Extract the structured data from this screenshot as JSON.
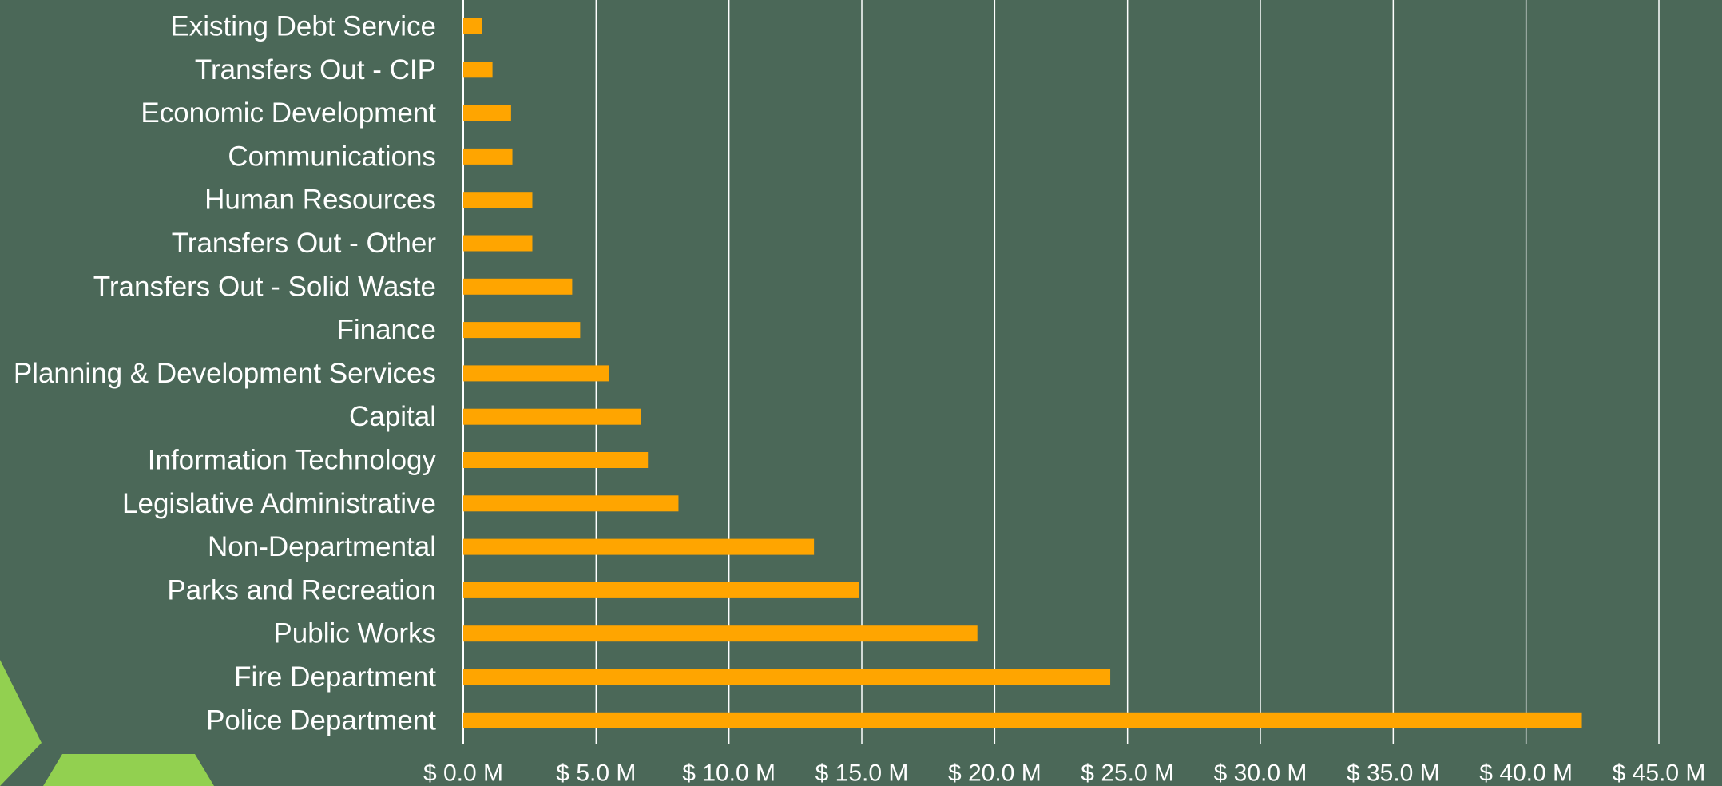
{
  "chart_data": {
    "type": "bar",
    "orientation": "horizontal",
    "categories": [
      "Existing Debt Service",
      "Transfers Out - CIP",
      "Economic Development",
      "Communications",
      "Human Resources",
      "Transfers Out - Other",
      "Transfers Out - Solid Waste",
      "Finance",
      "Planning & Development Services",
      "Capital",
      "Information Technology",
      "Legislative Administrative",
      "Non-Departmental",
      "Parks and Recreation",
      "Public Works",
      "Fire Department",
      "Police Department"
    ],
    "values": [
      0.7,
      1.1,
      1.8,
      1.85,
      2.6,
      2.6,
      4.1,
      4.4,
      5.5,
      6.7,
      6.95,
      8.1,
      13.2,
      14.9,
      19.35,
      24.35,
      42.1
    ],
    "unit": "$ M",
    "xlim": [
      0,
      45
    ],
    "xticks": [
      0,
      5,
      10,
      15,
      20,
      25,
      30,
      35,
      40,
      45
    ],
    "xtick_labels": [
      "$ 0.0 M",
      "$ 5.0 M",
      "$ 10.0 M",
      "$ 15.0 M",
      "$ 20.0 M",
      "$ 25.0 M",
      "$ 30.0 M",
      "$ 35.0 M",
      "$ 40.0 M",
      "$ 45.0 M"
    ],
    "title": "",
    "xlabel": "",
    "ylabel": "",
    "grid": "vertical",
    "legend": "none"
  },
  "colors": {
    "background": "#4b6858",
    "bar": "#ffa500",
    "gridline": "#ffffff",
    "text": "#ffffff",
    "accent_shape": "#92d050"
  }
}
